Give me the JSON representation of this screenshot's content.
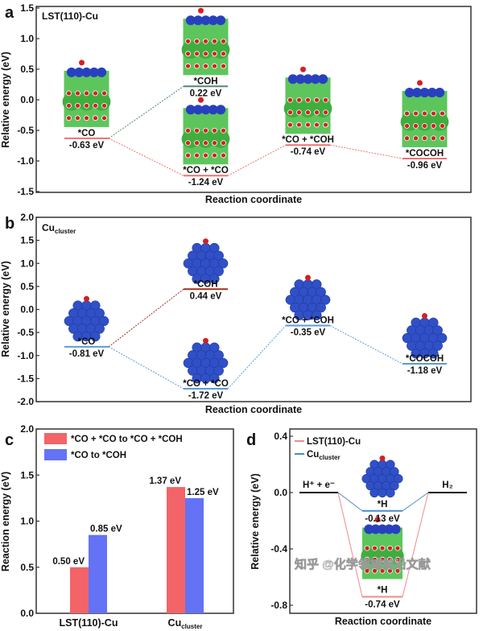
{
  "chart_data": [
    {
      "panel": "a",
      "type": "line",
      "inset_title": "LST(110)-Cu",
      "ylabel": "Relative energy (eV)",
      "xlabel": "Reaction coordinate",
      "ylim": [
        -1.5,
        1.5
      ],
      "yticks": [
        "1.5",
        "1.0",
        "0.5",
        "0.0",
        "-0.5",
        "-1.0",
        "-1.5"
      ],
      "states": [
        {
          "label": "*CO",
          "value": -0.63,
          "value_label": "-0.63 eV",
          "pos": 0
        },
        {
          "label": "*COH",
          "value": 0.22,
          "value_label": "0.22 eV",
          "pos": 1
        },
        {
          "label": "*CO + *CO",
          "value": -1.24,
          "value_label": "-1.24 eV",
          "pos": 1
        },
        {
          "label": "*CO + *COH",
          "value": -0.74,
          "value_label": "-0.74 eV",
          "pos": 2
        },
        {
          "label": "*COCOH",
          "value": -0.96,
          "value_label": "-0.96 eV",
          "pos": 3
        }
      ],
      "colors": {
        "main": "#f07070",
        "coh": "#4e8a6a"
      }
    },
    {
      "panel": "b",
      "type": "line",
      "inset_title": "Cu",
      "inset_title_sub": "cluster",
      "ylabel": "Relative energy (eV)",
      "xlabel": "Reaction coordinate",
      "ylim": [
        -2.0,
        2.0
      ],
      "yticks": [
        "2.0",
        "1.5",
        "1.0",
        "0.5",
        "0.0",
        "-0.5",
        "-1.0",
        "-1.5",
        "-2.0"
      ],
      "states": [
        {
          "label": "*CO",
          "value": -0.81,
          "value_label": "-0.81 eV",
          "pos": 0
        },
        {
          "label": "*COH",
          "value": 0.44,
          "value_label": "0.44 eV",
          "pos": 1
        },
        {
          "label": "*CO + *CO",
          "value": -1.72,
          "value_label": "-1.72 eV",
          "pos": 1
        },
        {
          "label": "*CO + *COH",
          "value": -0.35,
          "value_label": "-0.35 eV",
          "pos": 2
        },
        {
          "label": "*COCOH",
          "value": -1.18,
          "value_label": "-1.18 eV",
          "pos": 3
        }
      ],
      "colors": {
        "main": "#5b9bd5",
        "coh": "#a03020"
      }
    },
    {
      "panel": "c",
      "type": "bar",
      "ylabel": "Reaction energy (eV)",
      "ylim": [
        0,
        2.0
      ],
      "yticks": [
        "2.0",
        "1.5",
        "1.0",
        "0.5",
        "0.0"
      ],
      "categories": [
        "LST(110)-Cu",
        "Cu"
      ],
      "category_sub": [
        "",
        "cluster"
      ],
      "legend_position": "top-left",
      "series": [
        {
          "name": "*CO + *CO to *CO + *COH",
          "values": [
            0.5,
            1.37
          ],
          "labels": [
            "0.50 eV",
            "1.37 eV"
          ],
          "color": "#f26468"
        },
        {
          "name": "*CO to *COH",
          "values": [
            0.85,
            1.25
          ],
          "labels": [
            "0.85 eV",
            "1.25 eV"
          ],
          "color": "#6472f5"
        }
      ]
    },
    {
      "panel": "d",
      "type": "line",
      "ylabel": "Relative energy (eV)",
      "xlabel": "Reaction coordinate",
      "ylim": [
        -0.8,
        0.4
      ],
      "yticks": [
        "0.4",
        "0.0",
        "-0.4",
        "-0.8"
      ],
      "endpoints": {
        "start": "H⁺ + e⁻",
        "end": "H₂",
        "value": 0.0
      },
      "legend_position": "top-left",
      "series": [
        {
          "name": "LST(110)-Cu",
          "state": "*H",
          "value": -0.74,
          "value_label": "-0.74 eV",
          "color": "#f08a8a"
        },
        {
          "name": "Cu",
          "name_sub": "cluster",
          "state": "*H",
          "value": -0.13,
          "value_label": "-0.13 eV",
          "color": "#4a8cc8"
        }
      ]
    }
  ],
  "watermark": "知乎 @化学领域前沿文献"
}
